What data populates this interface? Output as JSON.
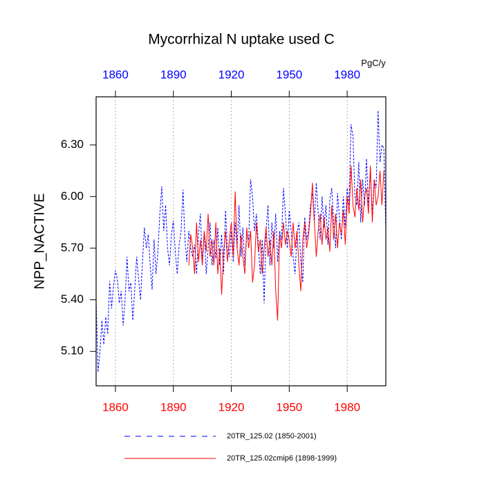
{
  "chart_data": {
    "type": "line",
    "title": "Mycorrhizal N uptake used C",
    "ylabel": "NPP_NACTIVE",
    "units": "PgC/y",
    "xlim": [
      1850,
      2000
    ],
    "ylim": [
      4.9,
      6.58
    ],
    "xticks": [
      1860,
      1890,
      1920,
      1950,
      1980
    ],
    "yticks": [
      {
        "value": 5.1,
        "label": "5.10"
      },
      {
        "value": 5.4,
        "label": "5.40"
      },
      {
        "value": 5.7,
        "label": "5.70"
      },
      {
        "value": 6.0,
        "label": "6.00"
      },
      {
        "value": 6.3,
        "label": "6.30"
      }
    ],
    "grid": "x",
    "top_tick_color": "#0000ff",
    "bottom_tick_color": "#ff0000",
    "x": [
      1850,
      1851,
      1852,
      1853,
      1854,
      1855,
      1856,
      1857,
      1858,
      1859,
      1860,
      1861,
      1862,
      1863,
      1864,
      1865,
      1866,
      1867,
      1868,
      1869,
      1870,
      1871,
      1872,
      1873,
      1874,
      1875,
      1876,
      1877,
      1878,
      1879,
      1880,
      1881,
      1882,
      1883,
      1884,
      1885,
      1886,
      1887,
      1888,
      1889,
      1890,
      1891,
      1892,
      1893,
      1894,
      1895,
      1896,
      1897,
      1898,
      1899,
      1900,
      1901,
      1902,
      1903,
      1904,
      1905,
      1906,
      1907,
      1908,
      1909,
      1910,
      1911,
      1912,
      1913,
      1914,
      1915,
      1916,
      1917,
      1918,
      1919,
      1920,
      1921,
      1922,
      1923,
      1924,
      1925,
      1926,
      1927,
      1928,
      1929,
      1930,
      1931,
      1932,
      1933,
      1934,
      1935,
      1936,
      1937,
      1938,
      1939,
      1940,
      1941,
      1942,
      1943,
      1944,
      1945,
      1946,
      1947,
      1948,
      1949,
      1950,
      1951,
      1952,
      1953,
      1954,
      1955,
      1956,
      1957,
      1958,
      1959,
      1960,
      1961,
      1962,
      1963,
      1964,
      1965,
      1966,
      1967,
      1968,
      1969,
      1970,
      1971,
      1972,
      1973,
      1974,
      1975,
      1976,
      1977,
      1978,
      1979,
      1980,
      1981,
      1982,
      1983,
      1984,
      1985,
      1986,
      1987,
      1988,
      1989,
      1990,
      1991,
      1992,
      1993,
      1994,
      1995,
      1996,
      1997,
      1998,
      1999,
      2000
    ],
    "series": [
      {
        "name": "20TR_125.02 (1850-2001)",
        "color": "#0000ff",
        "dash": "3,2",
        "values": [
          5.4,
          4.98,
          5.1,
          5.28,
          5.14,
          5.3,
          5.2,
          5.51,
          5.35,
          5.48,
          5.57,
          5.52,
          5.38,
          5.45,
          5.25,
          5.4,
          5.65,
          5.45,
          5.5,
          5.28,
          5.46,
          5.65,
          5.52,
          5.4,
          5.62,
          5.82,
          5.7,
          5.78,
          5.6,
          5.46,
          5.75,
          5.55,
          5.68,
          5.9,
          6.06,
          5.8,
          5.95,
          5.7,
          5.6,
          5.78,
          5.86,
          5.68,
          5.55,
          5.72,
          5.8,
          6.04,
          5.75,
          5.62,
          5.8,
          5.7,
          5.65,
          5.72,
          5.55,
          5.78,
          5.9,
          5.62,
          5.8,
          5.55,
          5.7,
          5.85,
          5.6,
          5.75,
          5.64,
          5.82,
          5.6,
          5.78,
          5.55,
          5.92,
          5.7,
          5.65,
          5.8,
          5.62,
          5.85,
          5.7,
          5.95,
          5.65,
          5.82,
          5.6,
          5.78,
          5.75,
          6.1,
          6.0,
          5.8,
          5.9,
          5.72,
          5.55,
          5.75,
          5.38,
          5.8,
          5.95,
          5.6,
          5.85,
          5.7,
          5.9,
          5.62,
          5.8,
          5.75,
          6.05,
          5.9,
          5.7,
          5.92,
          5.8,
          5.65,
          5.55,
          5.78,
          5.85,
          5.62,
          5.5,
          5.88,
          5.75,
          5.8,
          5.95,
          6.02,
          5.85,
          6.08,
          5.9,
          5.75,
          6.0,
          5.82,
          5.95,
          5.72,
          5.98,
          6.05,
          5.85,
          5.7,
          6.02,
          5.88,
          5.75,
          6.0,
          5.82,
          6.05,
          5.95,
          6.42,
          6.35,
          6.0,
          5.95,
          6.2,
          5.85,
          6.1,
          5.95,
          6.22,
          5.95,
          6.15,
          5.9,
          6.1,
          6.05,
          6.5,
          6.2,
          6.3,
          6.28,
          5.8
        ]
      },
      {
        "name": "20TR_125.02cmip6 (1898-1999)",
        "color": "#ff0000",
        "dash": "none",
        "values": [
          null,
          null,
          null,
          null,
          null,
          null,
          null,
          null,
          null,
          null,
          null,
          null,
          null,
          null,
          null,
          null,
          null,
          null,
          null,
          null,
          null,
          null,
          null,
          null,
          null,
          null,
          null,
          null,
          null,
          null,
          null,
          null,
          null,
          null,
          null,
          null,
          null,
          null,
          null,
          null,
          null,
          null,
          null,
          null,
          null,
          null,
          null,
          null,
          5.6,
          5.78,
          5.7,
          5.55,
          5.85,
          5.62,
          5.75,
          5.6,
          5.8,
          5.68,
          5.9,
          5.65,
          5.75,
          5.6,
          5.85,
          5.55,
          5.7,
          5.43,
          5.68,
          5.8,
          5.62,
          5.75,
          5.85,
          5.65,
          6.03,
          5.7,
          5.6,
          5.78,
          5.65,
          5.55,
          5.82,
          5.7,
          5.8,
          5.5,
          5.6,
          5.85,
          5.68,
          5.75,
          5.55,
          5.7,
          5.82,
          5.65,
          5.75,
          5.6,
          5.8,
          5.45,
          5.28,
          5.78,
          5.7,
          5.85,
          5.72,
          5.8,
          5.75,
          5.65,
          5.85,
          5.7,
          5.8,
          5.6,
          5.45,
          5.75,
          5.85,
          5.7,
          5.78,
          5.9,
          6.08,
          5.85,
          5.65,
          5.8,
          5.9,
          5.72,
          5.88,
          5.75,
          5.82,
          5.68,
          5.95,
          5.75,
          5.9,
          5.7,
          5.85,
          5.78,
          5.92,
          5.72,
          6.0,
          5.9,
          6.18,
          5.95,
          5.88,
          6.05,
          5.92,
          6.1,
          5.85,
          6.0,
          6.05,
          5.9,
          6.18,
          5.85,
          6.1,
          5.95,
          6.0,
          6.15,
          5.95,
          6.15,
          null
        ]
      }
    ]
  }
}
